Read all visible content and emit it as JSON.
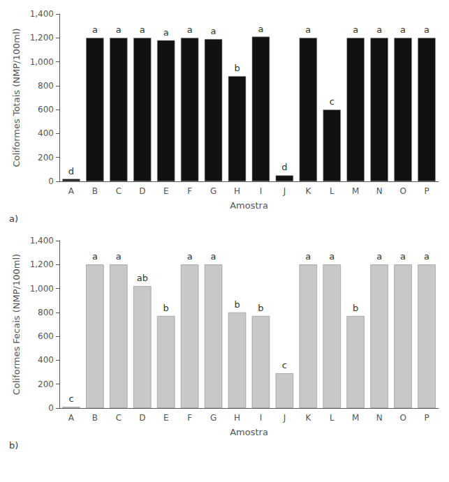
{
  "chart_data": [
    {
      "type": "bar",
      "title": "a)",
      "categories": [
        "A",
        "B",
        "C",
        "D",
        "E",
        "F",
        "G",
        "H",
        "I",
        "J",
        "K",
        "L",
        "M",
        "N",
        "O",
        "P"
      ],
      "values": [
        20,
        1200,
        1200,
        1200,
        1180,
        1200,
        1190,
        880,
        1210,
        50,
        1200,
        600,
        1200,
        1200,
        1200,
        1200
      ],
      "annotations": [
        "d",
        "a",
        "a",
        "a",
        "a",
        "a",
        "a",
        "b",
        "a",
        "d",
        "a",
        "c",
        "a",
        "a",
        "a",
        "a"
      ],
      "color": "#111111",
      "xlabel": "Amostra",
      "ylabel": "Coliformes Totais (NMP/100ml)",
      "ylim": [
        0,
        1400
      ],
      "yticks": [
        0,
        200,
        400,
        600,
        800,
        1000,
        1200,
        1400
      ],
      "grid": false
    },
    {
      "type": "bar",
      "title": "b)",
      "categories": [
        "A",
        "B",
        "C",
        "D",
        "E",
        "F",
        "G",
        "H",
        "I",
        "J",
        "K",
        "L",
        "M",
        "N",
        "O",
        "P"
      ],
      "values": [
        10,
        1200,
        1200,
        1020,
        770,
        1200,
        1200,
        800,
        770,
        290,
        1200,
        1200,
        770,
        1200,
        1200,
        1200
      ],
      "annotations": [
        "c",
        "a",
        "a",
        "ab",
        "b",
        "a",
        "a",
        "b",
        "b",
        "c",
        "a",
        "a",
        "b",
        "a",
        "a",
        "a"
      ],
      "color": "#c8c8c8",
      "xlabel": "Amostra",
      "ylabel": "Coliformes Fecais (NMP/100ml)",
      "ylim": [
        0,
        1400
      ],
      "yticks": [
        0,
        200,
        400,
        600,
        800,
        1000,
        1200,
        1400
      ],
      "grid": false
    }
  ]
}
